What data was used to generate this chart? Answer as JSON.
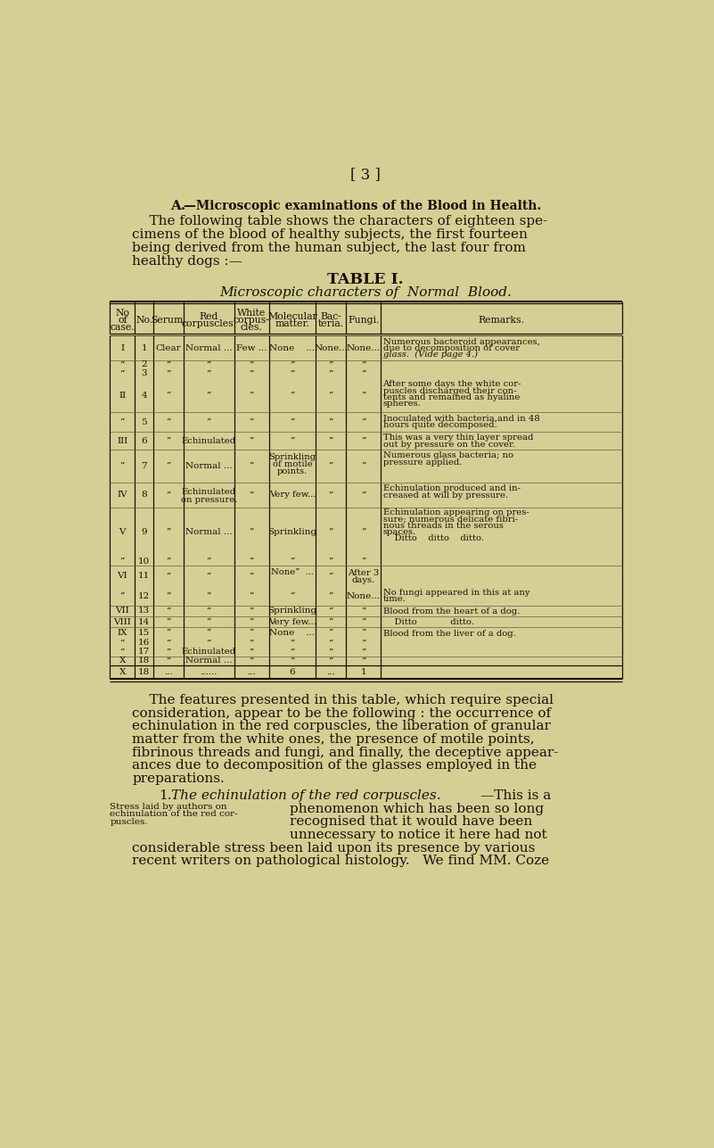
{
  "bg_color": "#d4cf94",
  "text_color": "#1a1008",
  "page_number": "[ 3 ]",
  "section_title_bold": "A.",
  "section_title_rest": "—Microscopic examinations of the Blood in Health.",
  "intro_lines": [
    "    The following table shows the characters of eighteen spe-",
    "cimens of the blood of healthy subjects, the first fourteen",
    "being derived from the human subject, the last four from",
    "healthy dogs :—"
  ],
  "table_title": "TABLE I.",
  "table_subtitle": "Microscopic characters of  Normal  Blood.",
  "col_headers": [
    "No\nof\ncase.",
    "No.",
    "Serum.",
    "Red\ncorpuscles.",
    "White\ncorpus-\ncles.",
    "Molecular\nmatter.",
    "Bac-\nteria.",
    "Fungi.",
    "Remarks."
  ],
  "body_lines": [
    "    The features presented in this table, which require special",
    "consideration, appear to be the following : the occurrence of",
    "echinulation in the red corpuscles, the liberation of granular",
    "matter from the white ones, the presence of motile points,",
    "fibrinous threads and fungi, and finally, the deceptive appear-",
    "ances due to decomposition of the glasses employed in the",
    "preparations."
  ],
  "section1_num": "1.",
  "section1_italic": "The echinulation of the red corpuscles.",
  "section1_end": "—This is a",
  "sidenote_lines": [
    "Stress laid by authors on",
    "echinulation of the red cor-",
    "puscles."
  ],
  "para2_lines": [
    "phenomenon which has been so long",
    "recognised that it would have been",
    "unnecessary to notice it here had not"
  ],
  "para3_lines": [
    "considerable stress been laid upon its presence by various",
    "recent writers on pathological histology.   We find MM. Coze"
  ]
}
